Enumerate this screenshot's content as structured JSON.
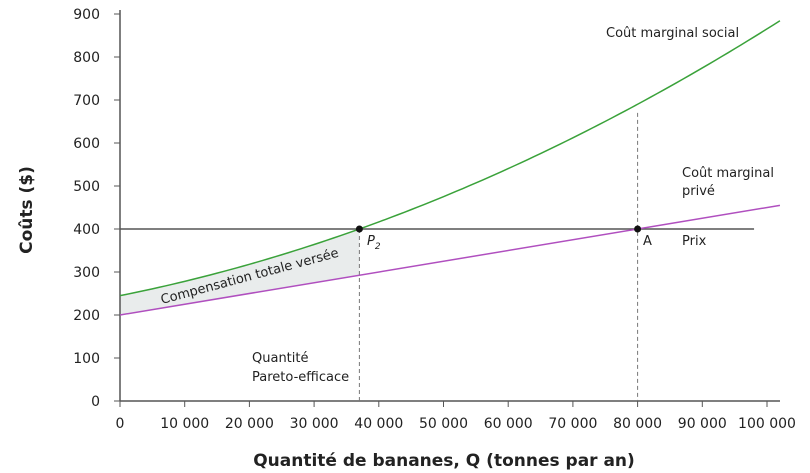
{
  "chart_data": {
    "type": "line",
    "xlabel": "Quantité de bananes, Q (tonnes par an)",
    "ylabel": "Coûts ($)",
    "xlim": [
      0,
      102000
    ],
    "ylim": [
      0,
      900
    ],
    "x_ticks": [
      "0",
      "10 000",
      "20 000",
      "30 000",
      "40 000",
      "50 000",
      "60 000",
      "70 000",
      "80 000",
      "90 000",
      "100 000"
    ],
    "y_ticks": [
      "0",
      "100",
      "200",
      "300",
      "400",
      "500",
      "600",
      "700",
      "800",
      "900"
    ],
    "grid": false,
    "series": [
      {
        "name": "Coût marginal social",
        "color": "#3aa23a",
        "x": [
          0,
          10000,
          20000,
          30000,
          37000,
          50000,
          60000,
          70000,
          80000,
          90000,
          102000
        ],
        "y": [
          245,
          278,
          318,
          366,
          400,
          475,
          545,
          622,
          690,
          800,
          885
        ]
      },
      {
        "name": "Coût marginal privé",
        "name_line2": "privé",
        "color": "#b04fbf",
        "x": [
          0,
          80000,
          102000
        ],
        "y": [
          200,
          400,
          455
        ]
      },
      {
        "name": "Prix",
        "color": "#555555",
        "x": [
          0,
          98000
        ],
        "y": [
          400,
          400
        ]
      }
    ],
    "points": [
      {
        "label": "P",
        "subscript": "2",
        "x": 37000,
        "y": 400
      },
      {
        "label": "A",
        "x": 80000,
        "y": 400
      }
    ],
    "annotations": {
      "shaded_area": "Compensation totale versée",
      "pareto_line1": "Quantité",
      "pareto_line2": "Pareto-efficace",
      "social_label": "Coût marginal social",
      "private_label1": "Coût marginal",
      "private_label2": "privé",
      "price_label": "Prix"
    }
  }
}
